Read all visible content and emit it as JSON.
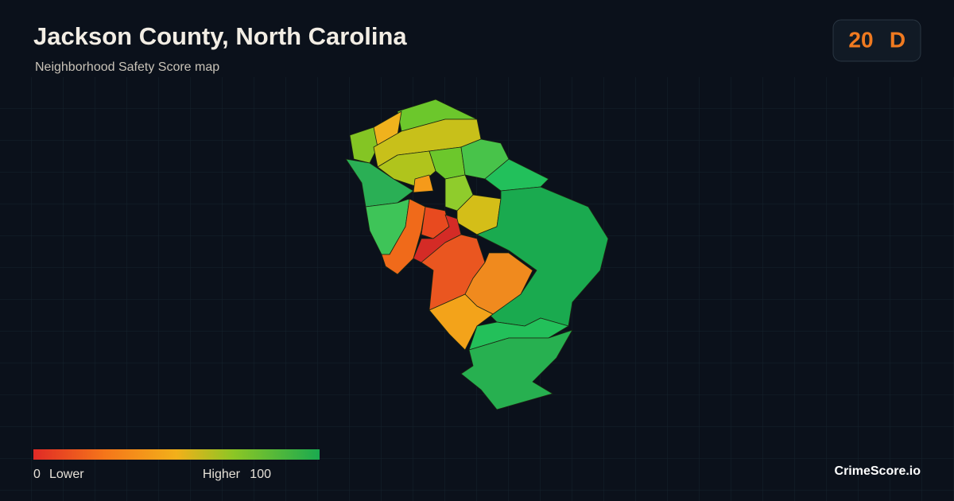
{
  "header": {
    "title": "Jackson County, North Carolina",
    "subtitle": "Neighborhood Safety Score map"
  },
  "score": {
    "value": 20,
    "grade": "D"
  },
  "legend": {
    "min": 0,
    "min_label": "Lower",
    "max_label": "Higher",
    "max": 100
  },
  "brand": "CrimeScore.io"
}
